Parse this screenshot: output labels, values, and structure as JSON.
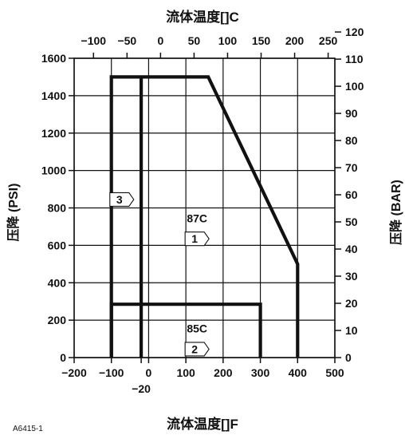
{
  "chart_data": {
    "type": "line",
    "title_top": "流体温度[]C",
    "title_bottom": "流体温度[]F",
    "ylabel_left": "压降 (PSI)",
    "ylabel_right": "压降 (BAR)",
    "figure_id": "A6415-1",
    "x_bottom": {
      "unit": "F",
      "range": [
        -200,
        500
      ],
      "ticks": [
        -200,
        -100,
        0,
        100,
        200,
        300,
        400,
        500
      ],
      "tick_labels": [
        "−200",
        "−100",
        "0",
        "100",
        "200",
        "300",
        "400",
        "500"
      ],
      "extra_tick": -20,
      "extra_tick_label": "−20"
    },
    "x_top": {
      "unit": "C",
      "ticks": [
        -100,
        -50,
        0,
        50,
        100,
        150,
        200,
        250
      ],
      "tick_labels": [
        "−100",
        "−50",
        "0",
        "50",
        "100",
        "150",
        "200",
        "250"
      ]
    },
    "y_left": {
      "unit": "PSI",
      "range": [
        0,
        1600
      ],
      "ticks": [
        0,
        200,
        400,
        600,
        800,
        1000,
        1200,
        1400,
        1600
      ],
      "tick_labels": [
        "0",
        "200",
        "400",
        "600",
        "800",
        "1000",
        "1200",
        "1400",
        "1600"
      ]
    },
    "y_right": {
      "unit": "BAR",
      "ticks": [
        0,
        10,
        20,
        30,
        40,
        50,
        60,
        70,
        80,
        90,
        100,
        110,
        120
      ],
      "tick_labels": [
        "0",
        "10",
        "20",
        "30",
        "40",
        "50",
        "60",
        "70",
        "80",
        "90",
        "100",
        "110",
        "120"
      ]
    },
    "grid": true,
    "series": [
      {
        "label": "87C",
        "marker": "1",
        "points": [
          [
            -100,
            0
          ],
          [
            -100,
            1500
          ],
          [
            160,
            1500
          ],
          [
            400,
            500
          ],
          [
            400,
            0
          ]
        ]
      },
      {
        "label": "85C",
        "marker": "2",
        "points": [
          [
            -100,
            0
          ],
          [
            -100,
            285
          ],
          [
            300,
            285
          ],
          [
            300,
            0
          ]
        ]
      },
      {
        "marker": "3",
        "points": [
          [
            -20,
            0
          ],
          [
            -20,
            1500
          ]
        ]
      }
    ],
    "annotations": [
      {
        "text": "3",
        "x": -72,
        "y": 845,
        "type": "arrow-box"
      },
      {
        "text": "87C",
        "x": 130,
        "y": 745,
        "type": "text"
      },
      {
        "text": "1",
        "x": 130,
        "y": 635,
        "type": "arrow-box"
      },
      {
        "text": "85C",
        "x": 130,
        "y": 155,
        "type": "text"
      },
      {
        "text": "2",
        "x": 130,
        "y": 45,
        "type": "arrow-box"
      }
    ]
  }
}
